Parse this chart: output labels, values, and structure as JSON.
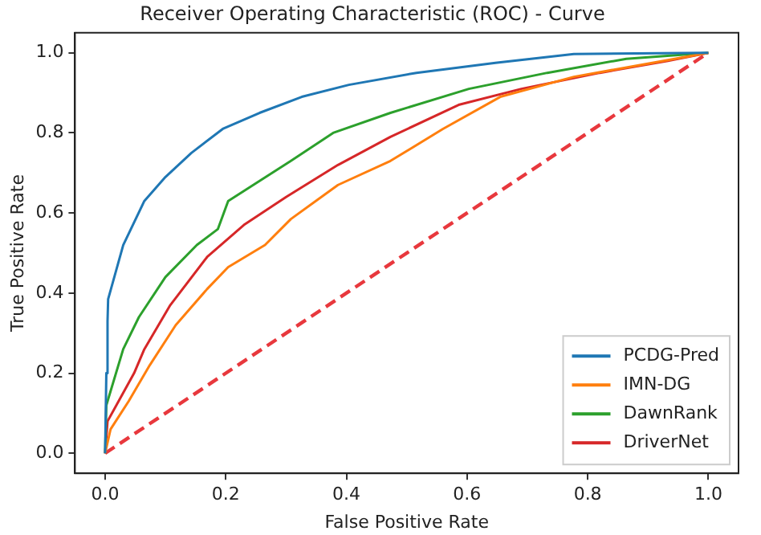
{
  "chart_data": {
    "type": "line",
    "title": "Receiver Operating Characteristic (ROC) - Curve",
    "xlabel": "False Positive Rate",
    "ylabel": "True Positive Rate",
    "xlim": [
      -0.05,
      1.05
    ],
    "ylim": [
      -0.05,
      1.05
    ],
    "xticks": [
      {
        "value": 0,
        "label": "0.0"
      },
      0.2,
      0.4,
      0.6,
      0.8,
      {
        "value": 1,
        "label": "1.0"
      }
    ],
    "yticks": [
      {
        "value": 0,
        "label": "0.0"
      },
      0.2,
      0.4,
      0.6,
      0.8,
      {
        "value": 1,
        "label": "1.0"
      }
    ],
    "grid": false,
    "legend": "bottom right",
    "marker": "none",
    "series": [
      {
        "name": "PCDG-Pred",
        "color": "#1f77b4",
        "x": [
          0,
          0.002,
          0.004,
          0.005,
          0.03,
          0.065,
          0.1,
          0.143,
          0.195,
          0.256,
          0.326,
          0.404,
          0.516,
          0.647,
          0.777,
          1
        ],
        "values": [
          0,
          0.2,
          0.33,
          0.385,
          0.52,
          0.63,
          0.69,
          0.75,
          0.81,
          0.85,
          0.89,
          0.92,
          0.95,
          0.975,
          0.997,
          1
        ]
      },
      {
        "name": "IMN-DG",
        "color": "#ff7f0e",
        "x": [
          0,
          0.009,
          0.039,
          0.074,
          0.117,
          0.169,
          0.204,
          0.265,
          0.308,
          0.386,
          0.473,
          0.56,
          0.655,
          0.777,
          0.907,
          1
        ],
        "values": [
          0,
          0.06,
          0.13,
          0.22,
          0.32,
          0.41,
          0.465,
          0.52,
          0.585,
          0.67,
          0.73,
          0.81,
          0.89,
          0.94,
          0.975,
          1
        ]
      },
      {
        "name": "DawnRank",
        "color": "#2ca02c",
        "x": [
          0,
          0.002,
          0.03,
          0.056,
          0.1,
          0.152,
          0.187,
          0.204,
          0.256,
          0.308,
          0.378,
          0.473,
          0.603,
          0.733,
          0.864,
          1
        ],
        "values": [
          0,
          0.12,
          0.26,
          0.34,
          0.44,
          0.52,
          0.56,
          0.63,
          0.68,
          0.73,
          0.8,
          0.85,
          0.91,
          0.95,
          0.985,
          1
        ]
      },
      {
        "name": "DriverNet",
        "color": "#d62728",
        "x": [
          0,
          0.004,
          0.048,
          0.065,
          0.108,
          0.169,
          0.23,
          0.3,
          0.386,
          0.473,
          0.586,
          0.69,
          0.82,
          0.933,
          1
        ],
        "values": [
          0,
          0.08,
          0.2,
          0.26,
          0.37,
          0.49,
          0.57,
          0.64,
          0.72,
          0.79,
          0.87,
          0.91,
          0.95,
          0.98,
          1
        ]
      },
      {
        "color": "#e8383d",
        "line_style": "dashed",
        "x": [
          0,
          1
        ],
        "values": [
          0,
          1
        ]
      }
    ]
  }
}
